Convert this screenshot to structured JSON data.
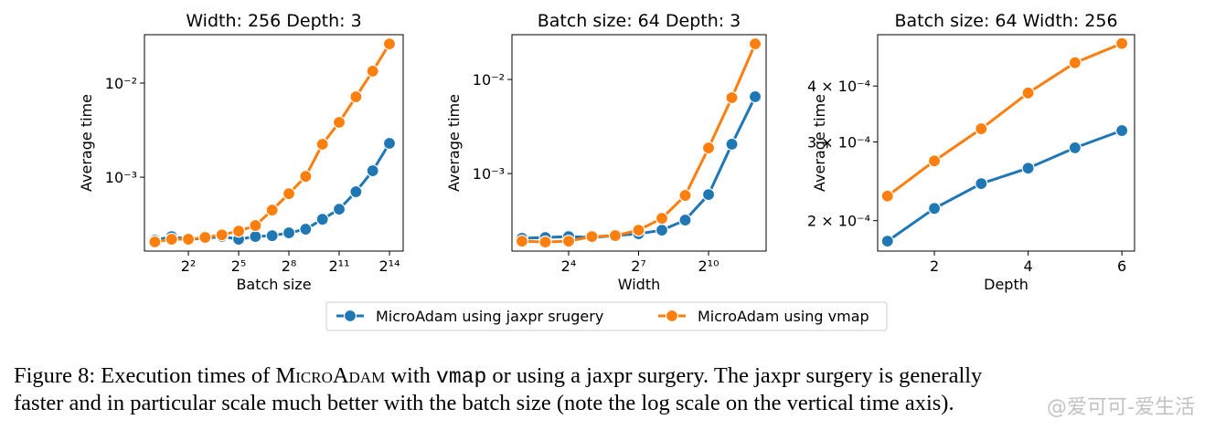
{
  "chart_data": [
    {
      "type": "line",
      "title": "Width: 256 Depth: 3",
      "xlabel": "Batch size",
      "ylabel": "Average time",
      "xscale": "log",
      "yscale": "log",
      "x": [
        1,
        2,
        4,
        8,
        16,
        32,
        64,
        128,
        256,
        512,
        1024,
        2048,
        4096,
        8192,
        16384
      ],
      "xlim": [
        0.65,
        28900
      ],
      "ylim": [
        0.000164,
        0.0327
      ],
      "xticks": [
        {
          "value": 4,
          "label": "2²"
        },
        {
          "value": 32,
          "label": "2⁵"
        },
        {
          "value": 256,
          "label": "2⁸"
        },
        {
          "value": 2048,
          "label": "2¹¹"
        },
        {
          "value": 16384,
          "label": "2¹⁴"
        }
      ],
      "yticks": [
        {
          "value": 0.01,
          "label": "10⁻²"
        },
        {
          "value": 0.001,
          "label": "10⁻³"
        }
      ],
      "series": [
        {
          "name": "MicroAdam using jaxpr srugery",
          "color": "#1f77b4",
          "values": [
            0.000214,
            0.000234,
            0.000219,
            0.000224,
            0.000234,
            0.000219,
            0.000234,
            0.000239,
            0.000256,
            0.00028,
            0.000357,
            0.000457,
            0.0007,
            0.00117,
            0.00229
          ]
        },
        {
          "name": "MicroAdam using vmap",
          "color": "#ff7f0e",
          "values": [
            0.000205,
            0.000219,
            0.000219,
            0.000229,
            0.000244,
            0.000267,
            0.000306,
            0.000447,
            0.000668,
            0.00102,
            0.00224,
            0.00383,
            0.00715,
            0.0134,
            0.0261
          ]
        }
      ]
    },
    {
      "type": "line",
      "title": "Batch size: 64 Depth: 3",
      "xlabel": "Width",
      "ylabel": "Average time",
      "xscale": "log",
      "yscale": "log",
      "x": [
        4,
        8,
        16,
        32,
        64,
        128,
        256,
        512,
        1024,
        2048,
        4096
      ],
      "xlim": [
        2.97,
        5670
      ],
      "ylim": [
        0.00015,
        0.0299
      ],
      "xticks": [
        {
          "value": 16,
          "label": "2⁴"
        },
        {
          "value": 128,
          "label": "2⁷"
        },
        {
          "value": 1024,
          "label": "2¹⁰"
        }
      ],
      "yticks": [
        {
          "value": 0.01,
          "label": "10⁻²"
        },
        {
          "value": 0.001,
          "label": "10⁻³"
        }
      ],
      "series": [
        {
          "name": "MicroAdam using jaxpr srugery",
          "color": "#1f77b4",
          "values": [
            0.000205,
            0.000209,
            0.000214,
            0.000209,
            0.000219,
            0.000229,
            0.00025,
            0.00032,
            0.000598,
            0.00205,
            0.00655
          ]
        },
        {
          "name": "MicroAdam using vmap",
          "color": "#ff7f0e",
          "values": [
            0.000191,
            0.000187,
            0.000191,
            0.000214,
            0.000219,
            0.00025,
            0.000334,
            0.000585,
            0.00187,
            0.0064,
            0.0239
          ]
        }
      ]
    },
    {
      "type": "line",
      "title": "Batch size: 64 Width: 256",
      "xlabel": "Depth",
      "ylabel": "Average time",
      "xscale": "linear",
      "yscale": "log",
      "x": [
        1,
        2,
        3,
        4,
        5,
        6
      ],
      "xlim": [
        0.79,
        6.27
      ],
      "ylim": [
        0.000171,
        0.000521
      ],
      "xticks": [
        2,
        4,
        6
      ],
      "yticks": [
        {
          "value": 0.0004,
          "label": "4 × 10⁻⁴"
        },
        {
          "value": 0.0003,
          "label": "3 × 10⁻⁴"
        },
        {
          "value": 0.0002,
          "label": "2 × 10⁻⁴"
        }
      ],
      "series": [
        {
          "name": "MicroAdam using jaxpr srugery",
          "color": "#1f77b4",
          "values": [
            0.00018,
            0.000213,
            0.000242,
            0.000262,
            0.000291,
            0.000318
          ]
        },
        {
          "name": "MicroAdam using vmap",
          "color": "#ff7f0e",
          "values": [
            0.000227,
            0.000272,
            0.000321,
            0.000386,
            0.000451,
            0.000498
          ]
        }
      ]
    }
  ],
  "caption": {
    "line1": [
      "Figure 8: Execution times of ",
      "MicroAdam",
      " with ",
      "vmap",
      " or using a jaxpr surgery. The jaxpr surgery is generally"
    ],
    "line2": "faster and in particular scale much better with the batch size (note the log scale on the vertical time axis)."
  },
  "watermark": "@爱可可-爱生活"
}
